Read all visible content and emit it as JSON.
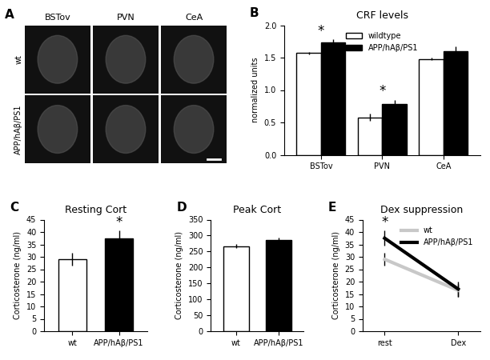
{
  "image_panel": {
    "panel": "A",
    "columns": [
      "BSTov",
      "PVN",
      "CeA"
    ],
    "rows": [
      "wt",
      "APP/hAβ/PS1"
    ]
  },
  "chart_data": [
    {
      "panel": "B",
      "type": "bar",
      "title": "CRF levels",
      "y_label": "normalized units",
      "categories": [
        "BSTov",
        "PVN",
        "CeA"
      ],
      "series": [
        {
          "name": "wildtype",
          "color": "#ffffff",
          "values": [
            1.57,
            0.58,
            1.48
          ],
          "errors": [
            0.02,
            0.05,
            0.02
          ]
        },
        {
          "name": "APP/hAβ/PS1",
          "color": "#000000",
          "values": [
            1.73,
            0.78,
            1.6
          ],
          "errors": [
            0.05,
            0.07,
            0.07
          ]
        }
      ],
      "ylim": [
        0,
        2.0
      ],
      "yticks": [
        {
          "value": 0,
          "label": "0.0"
        },
        {
          "value": 0.5,
          "label": "0.5"
        },
        {
          "value": 1.0,
          "label": "1.0"
        },
        {
          "value": 1.5,
          "label": "1.5"
        },
        {
          "value": 2.0,
          "label": "2.0"
        }
      ],
      "legend": "upper center",
      "annotations": [
        {
          "text": "*",
          "category": "BSTov"
        },
        {
          "text": "*",
          "category": "PVN"
        }
      ]
    },
    {
      "panel": "C",
      "type": "bar",
      "title": "Resting Cort",
      "y_label": "Corticosterone (ng/ml)",
      "categories": [
        "wt",
        "APP/hAβ/PS1"
      ],
      "values": [
        29,
        37.5
      ],
      "errors": [
        2.5,
        3
      ],
      "colors": [
        "#ffffff",
        "#000000"
      ],
      "ylim": [
        0,
        45
      ],
      "yticks": [
        0,
        5,
        10,
        15,
        20,
        25,
        30,
        35,
        40,
        45
      ],
      "annotations": [
        {
          "text": "*",
          "category": "APP/hAβ/PS1"
        }
      ]
    },
    {
      "panel": "D",
      "type": "bar",
      "title": "Peak Cort",
      "y_label": "Corticosterone (ng/ml)",
      "categories": [
        "wt",
        "APP/hAβ/PS1"
      ],
      "values": [
        267,
        285
      ],
      "errors": [
        7,
        8
      ],
      "colors": [
        "#ffffff",
        "#000000"
      ],
      "ylim": [
        0,
        350
      ],
      "yticks": [
        0,
        50,
        100,
        150,
        200,
        250,
        300,
        350
      ]
    },
    {
      "panel": "E",
      "type": "line",
      "title": "Dex suppression",
      "y_label": "Corticosterone (ng/ml)",
      "categories": [
        "rest",
        "Dex"
      ],
      "series": [
        {
          "name": "wt",
          "color": "#c8c8c8",
          "values": [
            29,
            16.5
          ],
          "errors": [
            2.5,
            2.5
          ]
        },
        {
          "name": "APP/hAβ/PS1",
          "color": "#000000",
          "values": [
            37.5,
            17
          ],
          "errors": [
            3,
            3
          ]
        }
      ],
      "ylim": [
        0,
        45
      ],
      "yticks": [
        0,
        5,
        10,
        15,
        20,
        25,
        30,
        35,
        40,
        45
      ],
      "legend": "upper right",
      "annotations": [
        {
          "text": "*",
          "category": "rest"
        }
      ]
    }
  ]
}
